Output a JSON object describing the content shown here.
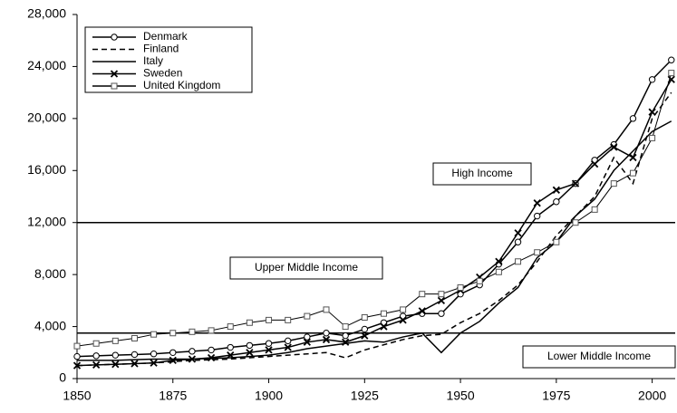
{
  "chart_data": {
    "type": "line",
    "x": [
      1850,
      1855,
      1860,
      1865,
      1870,
      1875,
      1880,
      1885,
      1890,
      1895,
      1900,
      1905,
      1910,
      1915,
      1920,
      1925,
      1930,
      1935,
      1940,
      1945,
      1950,
      1955,
      1960,
      1965,
      1970,
      1975,
      1980,
      1985,
      1990,
      1995,
      2000,
      2005
    ],
    "series": [
      {
        "name": "Denmark",
        "color": "#000000",
        "marker": "circle",
        "dash": false,
        "values": [
          1700,
          1750,
          1800,
          1850,
          1900,
          2000,
          2100,
          2200,
          2400,
          2550,
          2700,
          2900,
          3200,
          3500,
          3300,
          3800,
          4300,
          4800,
          5000,
          5000,
          6500,
          7200,
          8800,
          10500,
          12500,
          13600,
          15000,
          16800,
          18000,
          20000,
          23000,
          24500
        ]
      },
      {
        "name": "Finland",
        "color": "#000000",
        "marker": "none",
        "dash": true,
        "values": [
          1000,
          1050,
          1100,
          1150,
          1200,
          1300,
          1400,
          1450,
          1500,
          1600,
          1700,
          1800,
          1900,
          2000,
          1600,
          2200,
          2600,
          3000,
          3300,
          3400,
          4300,
          5000,
          6000,
          7200,
          9000,
          11000,
          12500,
          14000,
          17000,
          15000,
          20000,
          22000
        ]
      },
      {
        "name": "Italy",
        "color": "#000000",
        "marker": "none",
        "dash": false,
        "values": [
          1400,
          1400,
          1400,
          1450,
          1500,
          1500,
          1500,
          1550,
          1600,
          1700,
          1800,
          2000,
          2300,
          2500,
          2700,
          2900,
          2800,
          3200,
          3500,
          2000,
          3500,
          4400,
          5800,
          7000,
          9300,
          10500,
          12500,
          13800,
          16000,
          17500,
          19000,
          19800
        ]
      },
      {
        "name": "Sweden",
        "color": "#000000",
        "marker": "x",
        "dash": false,
        "values": [
          1000,
          1050,
          1100,
          1150,
          1200,
          1400,
          1500,
          1600,
          1800,
          2000,
          2200,
          2400,
          2800,
          3000,
          2800,
          3300,
          4000,
          4500,
          5200,
          6000,
          6800,
          7800,
          9000,
          11200,
          13500,
          14500,
          15000,
          16500,
          17800,
          17000,
          20500,
          23000
        ]
      },
      {
        "name": "United Kingdom",
        "color": "#000000",
        "marker": "square",
        "dash": false,
        "values": [
          2500,
          2700,
          2900,
          3100,
          3400,
          3500,
          3600,
          3700,
          4000,
          4300,
          4500,
          4500,
          4800,
          5300,
          4000,
          4700,
          5000,
          5300,
          6500,
          6500,
          7000,
          7500,
          8200,
          9000,
          9700,
          10500,
          12000,
          13000,
          15000,
          15800,
          18500,
          23500
        ]
      }
    ],
    "reference_lines": [
      12000,
      3500
    ],
    "annotations": [
      "High Income",
      "Upper Middle Income",
      "Lower Middle Income"
    ],
    "xlim": [
      1850,
      2006
    ],
    "xticks": [
      1850,
      1875,
      1900,
      1925,
      1950,
      1975,
      2000
    ],
    "ylim": [
      0,
      28000
    ],
    "yticks": [
      0,
      {
        "value": 4000,
        "label": "4,000"
      },
      {
        "value": 8000,
        "label": "8,000"
      },
      {
        "value": 12000,
        "label": "12,000"
      },
      {
        "value": 16000,
        "label": "16,000"
      },
      {
        "value": 20000,
        "label": "20,000"
      },
      {
        "value": 24000,
        "label": "24,000"
      },
      {
        "value": 28000,
        "label": "28,000"
      }
    ],
    "legend": "upper left",
    "grid": false
  }
}
